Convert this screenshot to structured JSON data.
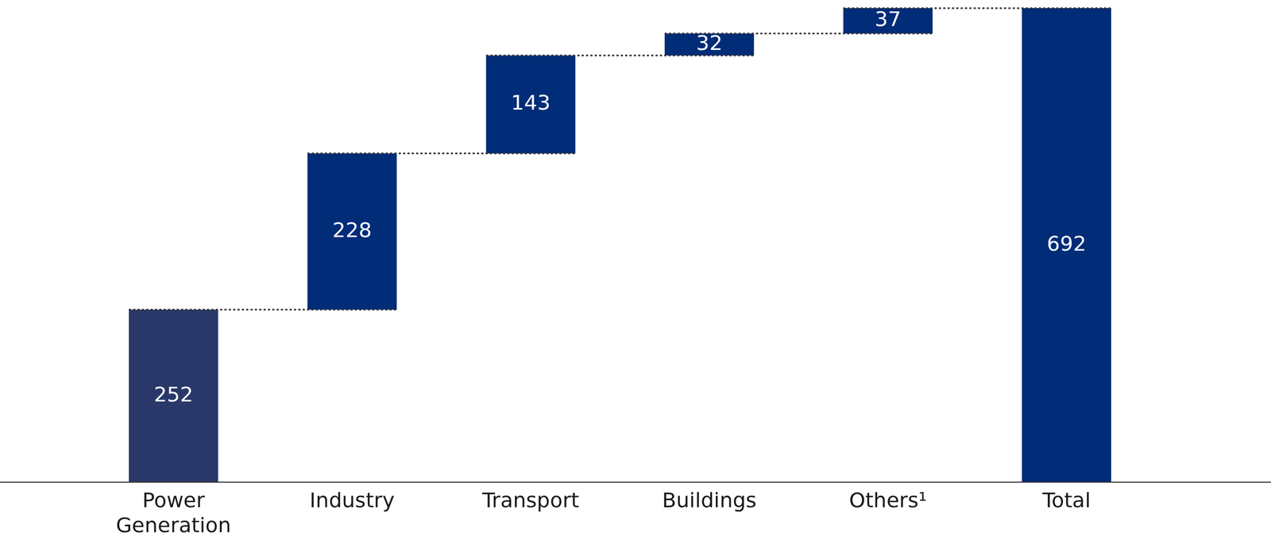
{
  "chart_data": {
    "type": "waterfall",
    "categories": [
      "Power Generation",
      "Industry",
      "Transport",
      "Buildings",
      "Others¹",
      "Total"
    ],
    "values": [
      252,
      228,
      143,
      32,
      37,
      692
    ],
    "colors": [
      "#293868",
      "#012c78",
      "#012c78",
      "#012c78",
      "#012c78",
      "#012c78"
    ],
    "ylim": [
      0,
      700
    ],
    "grid": false,
    "data_labels": true,
    "tick_labels": "x"
  }
}
